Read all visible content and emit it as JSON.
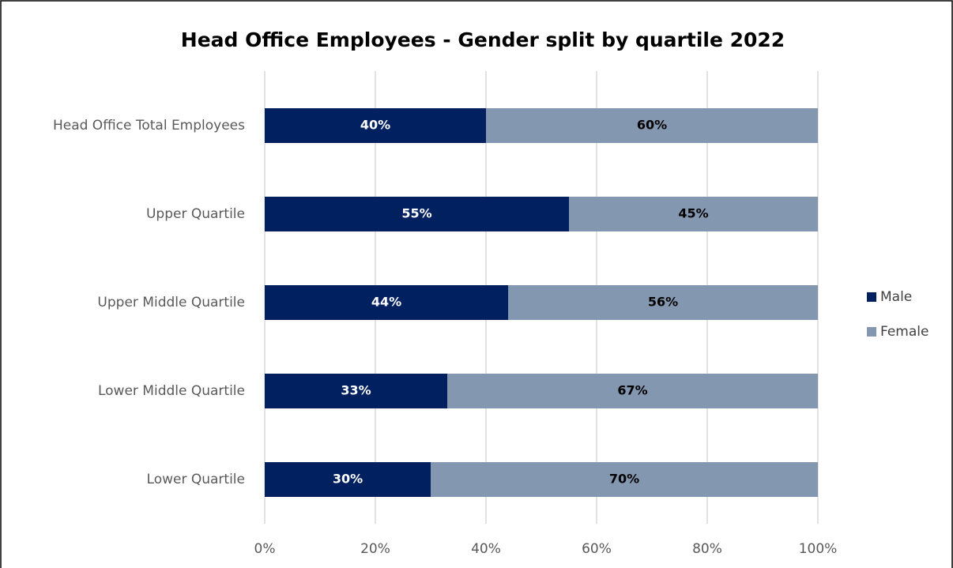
{
  "chart_data": {
    "type": "stacked_bar_horizontal",
    "title": "Head Office Employees - Gender split by quartile 2022",
    "categories": [
      "Head Office Total Employees",
      "Upper Quartile",
      "Upper Middle Quartile",
      "Lower Middle Quartile",
      "Lower Quartile"
    ],
    "series": [
      {
        "name": "Male",
        "color": "#002060",
        "label_color": "#ffffff",
        "values": [
          40,
          55,
          44,
          33,
          30
        ],
        "value_labels": [
          "40%",
          "55%",
          "44%",
          "33%",
          "30%"
        ]
      },
      {
        "name": "Female",
        "color": "#8497b0",
        "label_color": "#000000",
        "values": [
          60,
          45,
          56,
          67,
          70
        ],
        "value_labels": [
          "60%",
          "45%",
          "56%",
          "67%",
          "70%"
        ]
      }
    ],
    "xlim": [
      0,
      100
    ],
    "xticks": [
      {
        "value": 0,
        "label": "0%"
      },
      {
        "value": 20,
        "label": "20%"
      },
      {
        "value": 40,
        "label": "40%"
      },
      {
        "value": 60,
        "label": "60%"
      },
      {
        "value": 80,
        "label": "80%"
      },
      {
        "value": 100,
        "label": "100%"
      }
    ],
    "grid": true,
    "legend": "right"
  }
}
